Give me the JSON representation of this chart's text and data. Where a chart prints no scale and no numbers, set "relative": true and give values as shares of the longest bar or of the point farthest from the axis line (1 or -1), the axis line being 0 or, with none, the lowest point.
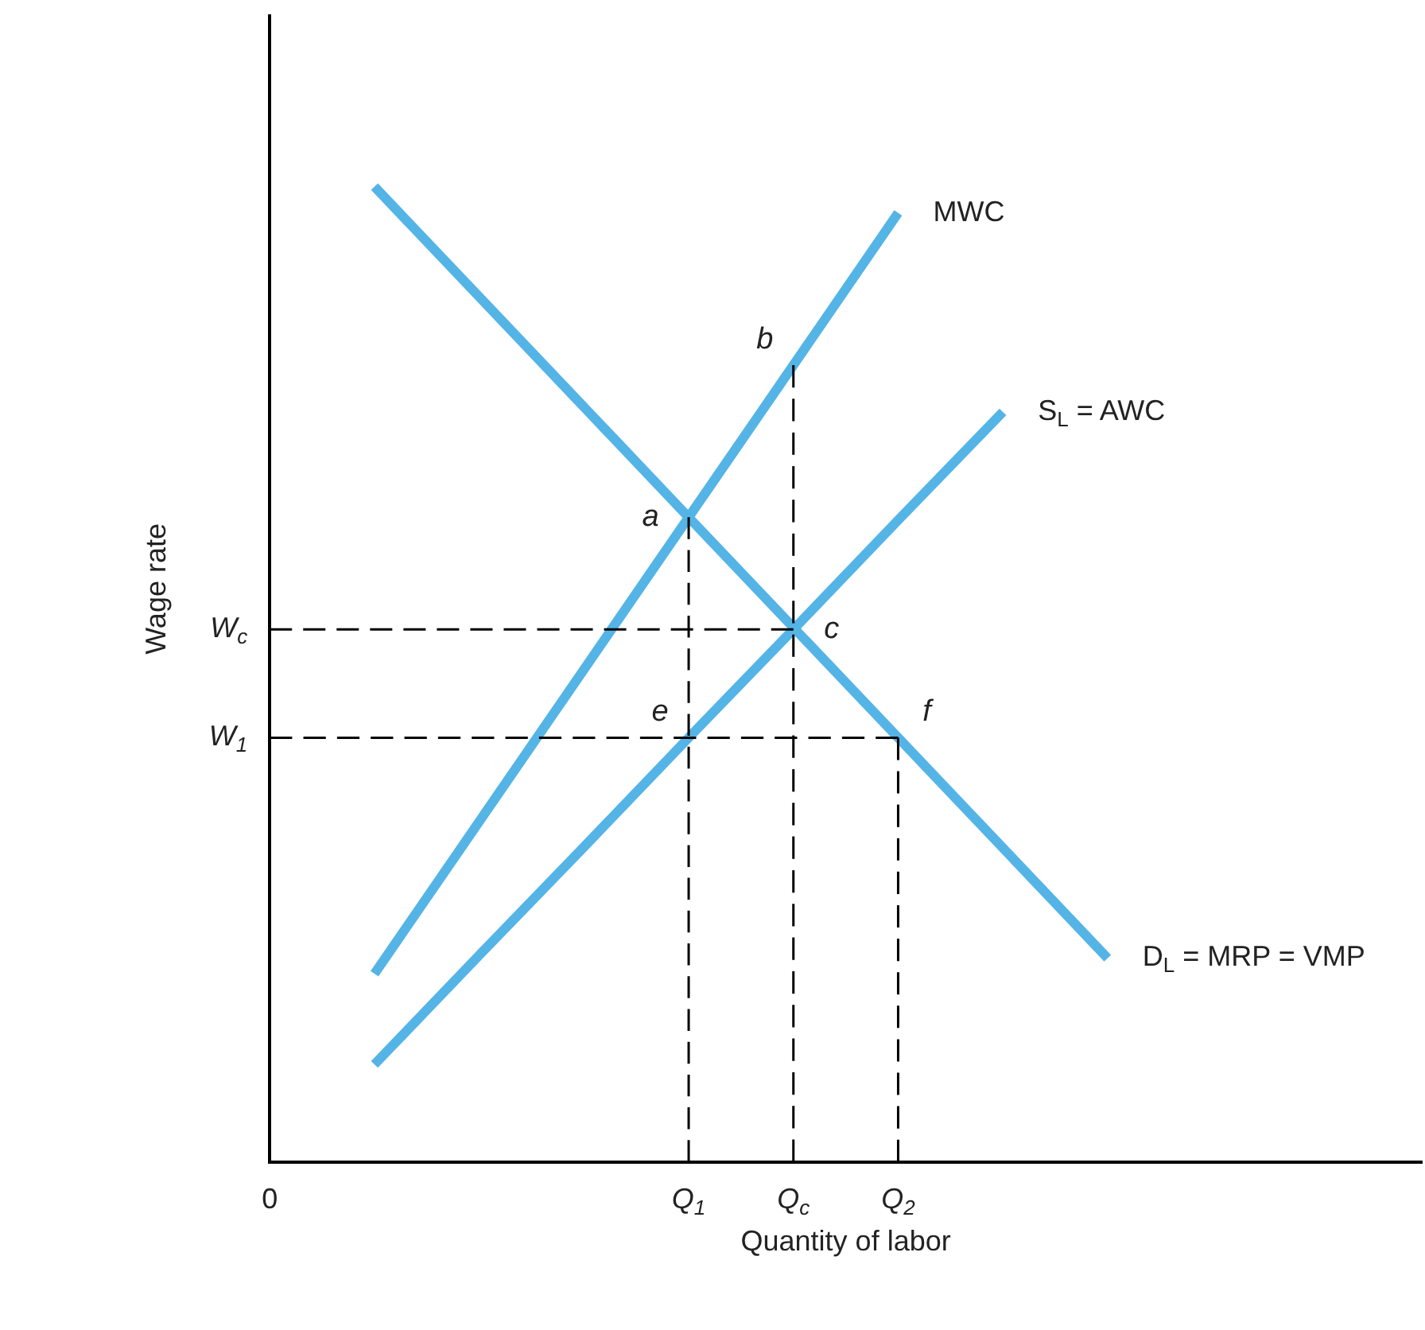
{
  "chart_data": {
    "type": "line",
    "relative": true,
    "xlabel": "Quantity of labor",
    "ylabel": "Wage rate",
    "legend": false,
    "marker": "none",
    "categories": [
      "0",
      null,
      null,
      null,
      "Q$_{1}$",
      "Q$_{c}$",
      "Q$_{2}$",
      null,
      null,
      null,
      null,
      null
    ],
    "series": [
      {
        "name": "MWC",
        "color": "#55b4e6",
        "values": [
          null,
          0.193,
          0.349,
          0.505,
          0.661,
          0.817,
          0.973,
          null,
          null,
          null,
          null,
          null
        ]
      },
      {
        "name": "S$_{L}$ = AWC",
        "color": "#55b4e6",
        "values": [
          null,
          0.1,
          0.212,
          0.323,
          0.435,
          0.546,
          0.658,
          0.769,
          null,
          null,
          null,
          null
        ]
      },
      {
        "name": "D$_{L}$ = MRP = VMP",
        "color": "#55b4e6",
        "values": [
          null,
          1.0,
          0.887,
          0.774,
          0.661,
          0.548,
          0.435,
          0.322,
          0.209,
          null,
          null,
          null
        ]
      },
      {
        "color": "#000000",
        "line_style": "dashed",
        "x": [
          "0",
          "Q$_{c}$"
        ],
        "values": [
          0.546,
          0.546
        ]
      },
      {
        "color": "#000000",
        "line_style": "dashed",
        "x": [
          "0",
          "Q$_{2}$"
        ],
        "values": [
          0.435,
          0.435
        ]
      },
      {
        "color": "#000000",
        "line_style": "dashed",
        "x": [
          "Q$_{1}$",
          "Q$_{1}$"
        ],
        "values": [
          0,
          0.661
        ]
      },
      {
        "color": "#000000",
        "line_style": "dashed",
        "x": [
          "Q$_{c}$",
          "Q$_{c}$"
        ],
        "values": [
          0,
          0.817
        ]
      },
      {
        "color": "#000000",
        "line_style": "dashed",
        "x": [
          "Q$_{2}$",
          "Q$_{2}$"
        ],
        "values": [
          0,
          0.435
        ]
      }
    ],
    "annotations": [
      {
        "text": "a",
        "x": "Q$_{1}$",
        "y": 0.661
      },
      {
        "text": "b",
        "x": "Q$_{c}$",
        "y": 0.817
      },
      {
        "text": "c",
        "x": "Q$_{c}$",
        "y": 0.546
      },
      {
        "text": "e",
        "x": "Q$_{1}$",
        "y": 0.435
      },
      {
        "text": "f",
        "x": "Q$_{2}$",
        "y": 0.435
      },
      {
        "text": "W$_{1}$",
        "x": "0",
        "y": 0.435
      },
      {
        "text": "W$_{c}$",
        "x": "0",
        "y": 0.546
      }
    ]
  }
}
